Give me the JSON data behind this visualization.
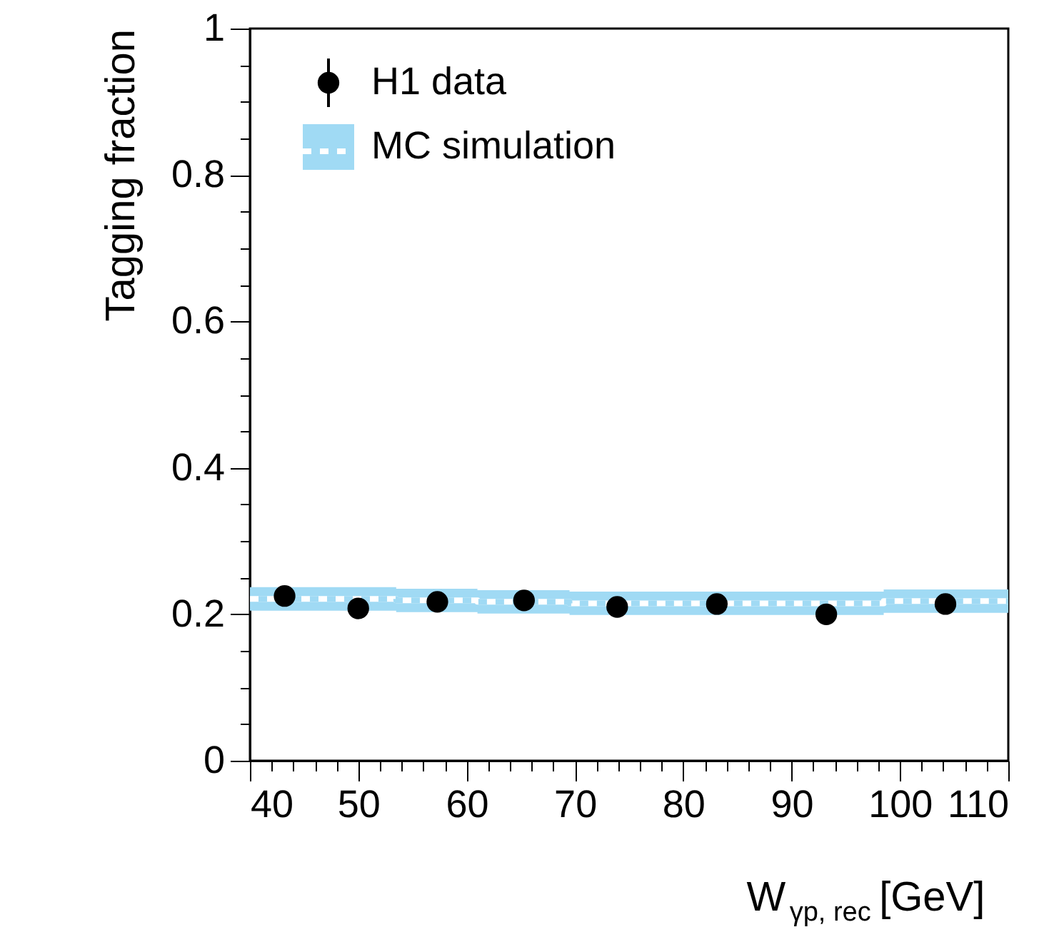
{
  "chart_data": {
    "type": "scatter",
    "xlabel": "W$_{γp, rec}$ [GeV]",
    "ylabel": "Tagging fraction",
    "xlim": [
      40,
      110
    ],
    "ylim": [
      0,
      1
    ],
    "xticks": [
      40,
      {
        "value": 42,
        "label": null
      },
      {
        "value": 44,
        "label": null
      },
      {
        "value": 46,
        "label": null
      },
      {
        "value": 48,
        "label": null
      },
      50,
      {
        "value": 52,
        "label": null
      },
      {
        "value": 54,
        "label": null
      },
      {
        "value": 56,
        "label": null
      },
      {
        "value": 58,
        "label": null
      },
      60,
      {
        "value": 62,
        "label": null
      },
      {
        "value": 64,
        "label": null
      },
      {
        "value": 66,
        "label": null
      },
      {
        "value": 68,
        "label": null
      },
      70,
      {
        "value": 72,
        "label": null
      },
      {
        "value": 74,
        "label": null
      },
      {
        "value": 76,
        "label": null
      },
      {
        "value": 78,
        "label": null
      },
      80,
      {
        "value": 82,
        "label": null
      },
      {
        "value": 84,
        "label": null
      },
      {
        "value": 86,
        "label": null
      },
      {
        "value": 88,
        "label": null
      },
      90,
      {
        "value": 92,
        "label": null
      },
      {
        "value": 94,
        "label": null
      },
      {
        "value": 96,
        "label": null
      },
      {
        "value": 98,
        "label": null
      },
      100,
      {
        "value": 102,
        "label": null
      },
      {
        "value": 104,
        "label": null
      },
      {
        "value": 106,
        "label": null
      },
      {
        "value": 108,
        "label": null
      },
      110
    ],
    "yticks": [
      0,
      {
        "value": 0.05,
        "label": null
      },
      {
        "value": 0.1,
        "label": null
      },
      {
        "value": 0.15,
        "label": null
      },
      0.2,
      {
        "value": 0.25,
        "label": null
      },
      {
        "value": 0.3,
        "label": null
      },
      {
        "value": 0.35,
        "label": null
      },
      0.4,
      {
        "value": 0.45,
        "label": null
      },
      {
        "value": 0.5,
        "label": null
      },
      {
        "value": 0.55,
        "label": null
      },
      0.6,
      {
        "value": 0.65,
        "label": null
      },
      {
        "value": 0.7,
        "label": null
      },
      {
        "value": 0.75,
        "label": null
      },
      0.8,
      {
        "value": 0.85,
        "label": null
      },
      {
        "value": 0.9,
        "label": null
      },
      {
        "value": 0.95,
        "label": null
      },
      1
    ],
    "legend": "top left",
    "grid": false,
    "series": [
      {
        "name": "H1 data",
        "type": "scatter",
        "color": "#000000",
        "marker": "circle",
        "x": [
          43.2,
          50.0,
          57.3,
          65.3,
          73.9,
          83.1,
          93.2,
          104.2
        ],
        "values": [
          0.225,
          0.208,
          0.217,
          0.219,
          0.21,
          0.214,
          0.2,
          0.214
        ]
      },
      {
        "name": "MC simulation",
        "type": "step",
        "color": "#a0daf4",
        "line_style": "dotted",
        "x": [
          40,
          46.5,
          53.5,
          61,
          69.5,
          78,
          88,
          98.5,
          110
        ],
        "values": [
          0.221,
          0.221,
          0.219,
          0.217,
          0.215,
          0.215,
          0.215,
          0.218,
          0.218
        ],
        "lower": [
          0.205,
          0.205,
          0.203,
          0.201,
          0.199,
          0.199,
          0.199,
          0.202,
          0.202
        ],
        "upper": [
          0.237,
          0.237,
          0.235,
          0.233,
          0.231,
          0.231,
          0.231,
          0.234,
          0.234
        ]
      }
    ]
  }
}
